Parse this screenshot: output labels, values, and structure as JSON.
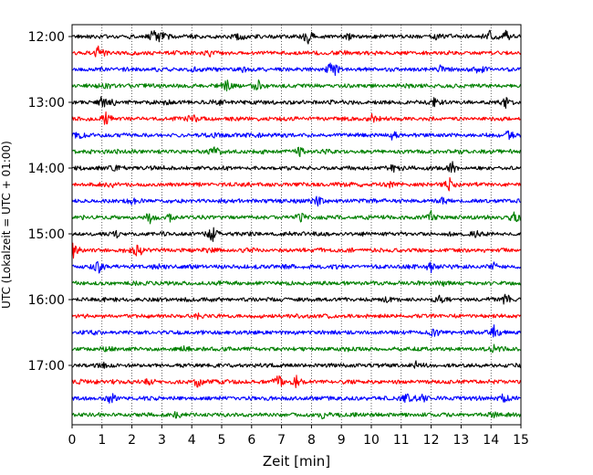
{
  "chart_data": {
    "type": "line",
    "title": "",
    "xlabel": "Zeit  [min]",
    "ylabel": "UTC (Lokalzeit = UTC + 01:00)",
    "xlim": [
      0,
      15
    ],
    "x_ticks": [
      "0",
      "1",
      "2",
      "3",
      "4",
      "5",
      "6",
      "7",
      "8",
      "9",
      "10",
      "11",
      "12",
      "13",
      "14",
      "15"
    ],
    "y_tick_labels": [
      "12:00",
      "13:00",
      "14:00",
      "15:00",
      "16:00",
      "17:00"
    ],
    "y_tick_row_index": [
      0,
      4,
      8,
      12,
      16,
      20
    ],
    "grid": {
      "x": true,
      "y": false,
      "style": "dotted"
    },
    "trace_colors": [
      "#000000",
      "#ff0000",
      "#0000ff",
      "#008000"
    ],
    "row_count": 24,
    "row_interval_minutes": 15,
    "traces": [
      {
        "start": "12:00",
        "color": "#000000",
        "events": [
          [
            2.7,
            1.0
          ],
          [
            2.95,
            1.0
          ],
          [
            5.6,
            0.6
          ],
          [
            7.9,
            1.3
          ],
          [
            9.2,
            0.7
          ],
          [
            12.15,
            0.4
          ],
          [
            12.55,
            0.4
          ],
          [
            13.95,
            1.0
          ],
          [
            14.5,
            1.0
          ]
        ]
      },
      {
        "start": "12:15",
        "color": "#ff0000",
        "events": [
          [
            0.9,
            1.3
          ],
          [
            4.6,
            0.5
          ],
          [
            8.8,
            0.4
          ]
        ]
      },
      {
        "start": "12:30",
        "color": "#0000ff",
        "events": [
          [
            4.1,
            0.5
          ],
          [
            5.7,
            0.4
          ],
          [
            8.7,
            1.9
          ],
          [
            12.3,
            0.5
          ],
          [
            13.6,
            0.6
          ]
        ]
      },
      {
        "start": "12:45",
        "color": "#008000",
        "events": [
          [
            1.2,
            0.4
          ],
          [
            5.15,
            1.3
          ],
          [
            6.2,
            1.1
          ]
        ]
      },
      {
        "start": "13:00",
        "color": "#000000",
        "events": [
          [
            1.0,
            1.0
          ],
          [
            1.4,
            0.6
          ],
          [
            3.1,
            0.5
          ],
          [
            4.9,
            0.4
          ],
          [
            12.1,
            0.7
          ],
          [
            14.5,
            1.1
          ]
        ]
      },
      {
        "start": "13:15",
        "color": "#ff0000",
        "events": [
          [
            1.15,
            1.4
          ],
          [
            4.0,
            0.9
          ],
          [
            10.0,
            0.7
          ]
        ]
      },
      {
        "start": "13:30",
        "color": "#0000ff",
        "events": [
          [
            0.2,
            0.5
          ],
          [
            4.8,
            0.5
          ],
          [
            10.7,
            0.6
          ],
          [
            14.6,
            0.8
          ]
        ]
      },
      {
        "start": "13:45",
        "color": "#008000",
        "events": [
          [
            4.8,
            0.9
          ],
          [
            7.6,
            0.9
          ]
        ]
      },
      {
        "start": "14:00",
        "color": "#000000",
        "events": [
          [
            1.45,
            0.6
          ],
          [
            10.8,
            1.0
          ],
          [
            12.7,
            1.1
          ]
        ]
      },
      {
        "start": "14:15",
        "color": "#ff0000",
        "events": [
          [
            1.3,
            0.4
          ],
          [
            10.6,
            0.5
          ],
          [
            12.6,
            1.6
          ]
        ]
      },
      {
        "start": "14:30",
        "color": "#0000ff",
        "events": [
          [
            2.0,
            0.4
          ],
          [
            8.2,
            0.9
          ],
          [
            12.4,
            0.5
          ]
        ]
      },
      {
        "start": "14:45",
        "color": "#008000",
        "events": [
          [
            2.6,
            1.1
          ],
          [
            3.3,
            0.8
          ],
          [
            7.6,
            0.9
          ],
          [
            12.0,
            0.9
          ],
          [
            14.8,
            1.1
          ]
        ]
      },
      {
        "start": "15:00",
        "color": "#000000",
        "events": [
          [
            1.5,
            0.5
          ],
          [
            4.7,
            1.6
          ],
          [
            13.5,
            0.5
          ]
        ]
      },
      {
        "start": "15:15",
        "color": "#ff0000",
        "events": [
          [
            0.05,
            1.6
          ],
          [
            2.2,
            1.2
          ],
          [
            4.6,
            0.6
          ]
        ]
      },
      {
        "start": "15:30",
        "color": "#0000ff",
        "events": [
          [
            0.9,
            1.4
          ],
          [
            2.9,
            0.5
          ],
          [
            12.0,
            0.9
          ],
          [
            14.1,
            1.1
          ]
        ]
      },
      {
        "start": "15:45",
        "color": "#008000",
        "events": [
          [
            12.4,
            0.4
          ]
        ]
      },
      {
        "start": "16:00",
        "color": "#000000",
        "events": [
          [
            10.6,
            0.6
          ],
          [
            12.3,
            0.6
          ],
          [
            14.5,
            1.1
          ]
        ]
      },
      {
        "start": "16:15",
        "color": "#ff0000",
        "events": [
          [
            4.2,
            0.4
          ]
        ]
      },
      {
        "start": "16:30",
        "color": "#0000ff",
        "events": [
          [
            0.7,
            0.4
          ],
          [
            12.1,
            0.8
          ],
          [
            14.1,
            1.2
          ]
        ]
      },
      {
        "start": "16:45",
        "color": "#008000",
        "events": [
          [
            1.2,
            0.5
          ],
          [
            3.8,
            0.5
          ],
          [
            9.3,
            0.5
          ],
          [
            14.1,
            0.5
          ]
        ]
      },
      {
        "start": "17:00",
        "color": "#000000",
        "events": [
          [
            1.0,
            0.6
          ],
          [
            11.5,
            0.6
          ]
        ]
      },
      {
        "start": "17:15",
        "color": "#ff0000",
        "events": [
          [
            2.6,
            0.8
          ],
          [
            4.2,
            1.3
          ],
          [
            6.9,
            1.3
          ],
          [
            7.5,
            1.0
          ]
        ]
      },
      {
        "start": "17:30",
        "color": "#0000ff",
        "events": [
          [
            1.3,
            1.5
          ],
          [
            11.2,
            0.9
          ],
          [
            11.7,
            0.6
          ],
          [
            14.4,
            0.8
          ]
        ]
      },
      {
        "start": "17:45",
        "color": "#008000",
        "events": [
          [
            3.5,
            0.5
          ],
          [
            8.4,
            0.7
          ],
          [
            14.1,
            0.4
          ]
        ]
      }
    ]
  }
}
